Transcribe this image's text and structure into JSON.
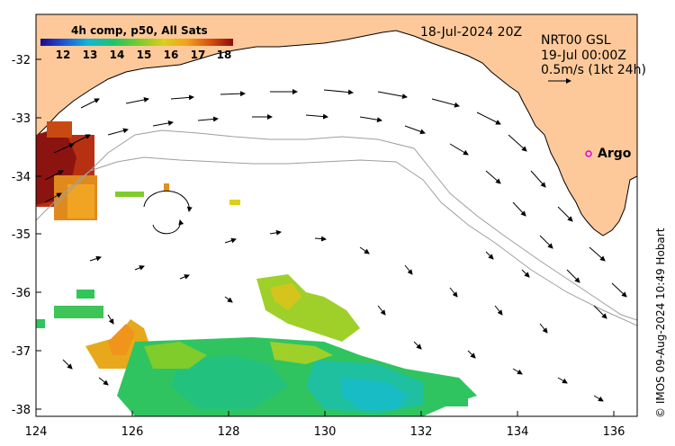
{
  "title_left": "4h comp, p50, All Sats",
  "date_label": "18-Jul-2024 20Z",
  "nrt_label": "NRT00 GSL",
  "valid_time": "19-Jul 00:00Z",
  "scale_label": "0.5m/s (1kt 24h)",
  "argo_label": "Argo",
  "credit": "© IMOS 09-Aug-2024 10:49 Hobart",
  "colorbar_ticks": [
    "12",
    "13",
    "14",
    "15",
    "16",
    "17",
    "18"
  ],
  "colorbar_range": [
    11.2,
    18.3
  ],
  "x_ticks": [
    "124",
    "126",
    "128",
    "130",
    "132",
    "134",
    "136"
  ],
  "y_ticks": [
    "-32",
    "-33",
    "-34",
    "-35",
    "-36",
    "-37",
    "-38"
  ],
  "lon_range": [
    124,
    136.5
  ],
  "lat_range": [
    -38.1,
    -31.3
  ],
  "colors": {
    "land": "#fdc99a",
    "coast": "#000000",
    "contour": "#9e9e9e",
    "argo": "#e000e0"
  },
  "argo_position": {
    "lon": 135.6,
    "lat": -33.6
  }
}
